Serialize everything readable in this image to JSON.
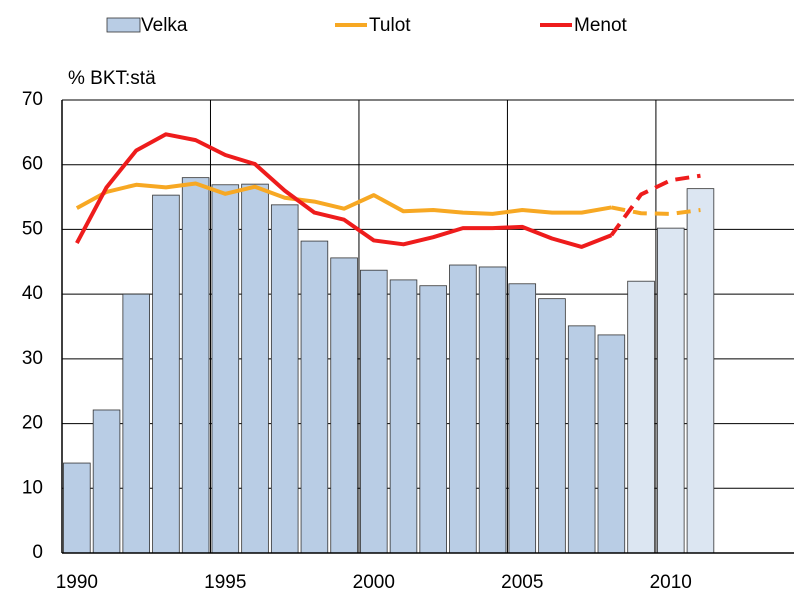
{
  "chart_data": {
    "type": "bar_line",
    "y_label": "% BKT:stä",
    "x": [
      1990,
      1991,
      1992,
      1993,
      1994,
      1995,
      1996,
      1997,
      1998,
      1999,
      2000,
      2001,
      2002,
      2003,
      2004,
      2005,
      2006,
      2007,
      2008,
      2009,
      2010,
      2011
    ],
    "series": [
      {
        "name": "Velka",
        "kind": "bar",
        "color": "#b9cde5",
        "forecast_color": "#dce6f2",
        "forecast_from": 2009,
        "values": [
          13.9,
          22.1,
          40.0,
          55.3,
          58.0,
          56.9,
          57.0,
          53.8,
          48.2,
          45.6,
          43.7,
          42.2,
          41.3,
          44.5,
          44.2,
          41.6,
          39.3,
          35.1,
          33.7,
          42.0,
          50.2,
          56.3
        ]
      },
      {
        "name": "Tulot",
        "kind": "line",
        "color": "#f7a823",
        "dashed_from": 2008,
        "values": [
          53.3,
          55.8,
          56.9,
          56.5,
          57.1,
          55.5,
          56.6,
          54.9,
          54.3,
          53.2,
          55.3,
          52.8,
          53.0,
          52.6,
          52.4,
          53.0,
          52.6,
          52.6,
          53.4,
          52.5,
          52.4,
          53.0
        ]
      },
      {
        "name": "Menot",
        "kind": "line",
        "color": "#ee1c1c",
        "dashed_from": 2008,
        "values": [
          47.9,
          56.5,
          62.2,
          64.7,
          63.8,
          61.5,
          60.1,
          56.0,
          52.6,
          51.5,
          48.3,
          47.7,
          48.8,
          50.2,
          50.2,
          50.4,
          48.6,
          47.3,
          49.1,
          55.4,
          57.6,
          58.3
        ]
      }
    ],
    "xlim": [
      1989.5,
      2014.15
    ],
    "xticks": [
      1990,
      1995,
      2000,
      2005,
      2010
    ],
    "ylim": [
      0,
      70
    ],
    "yticks": [
      0,
      10,
      20,
      30,
      40,
      50,
      60,
      70
    ],
    "grid": true,
    "legend": "top"
  }
}
